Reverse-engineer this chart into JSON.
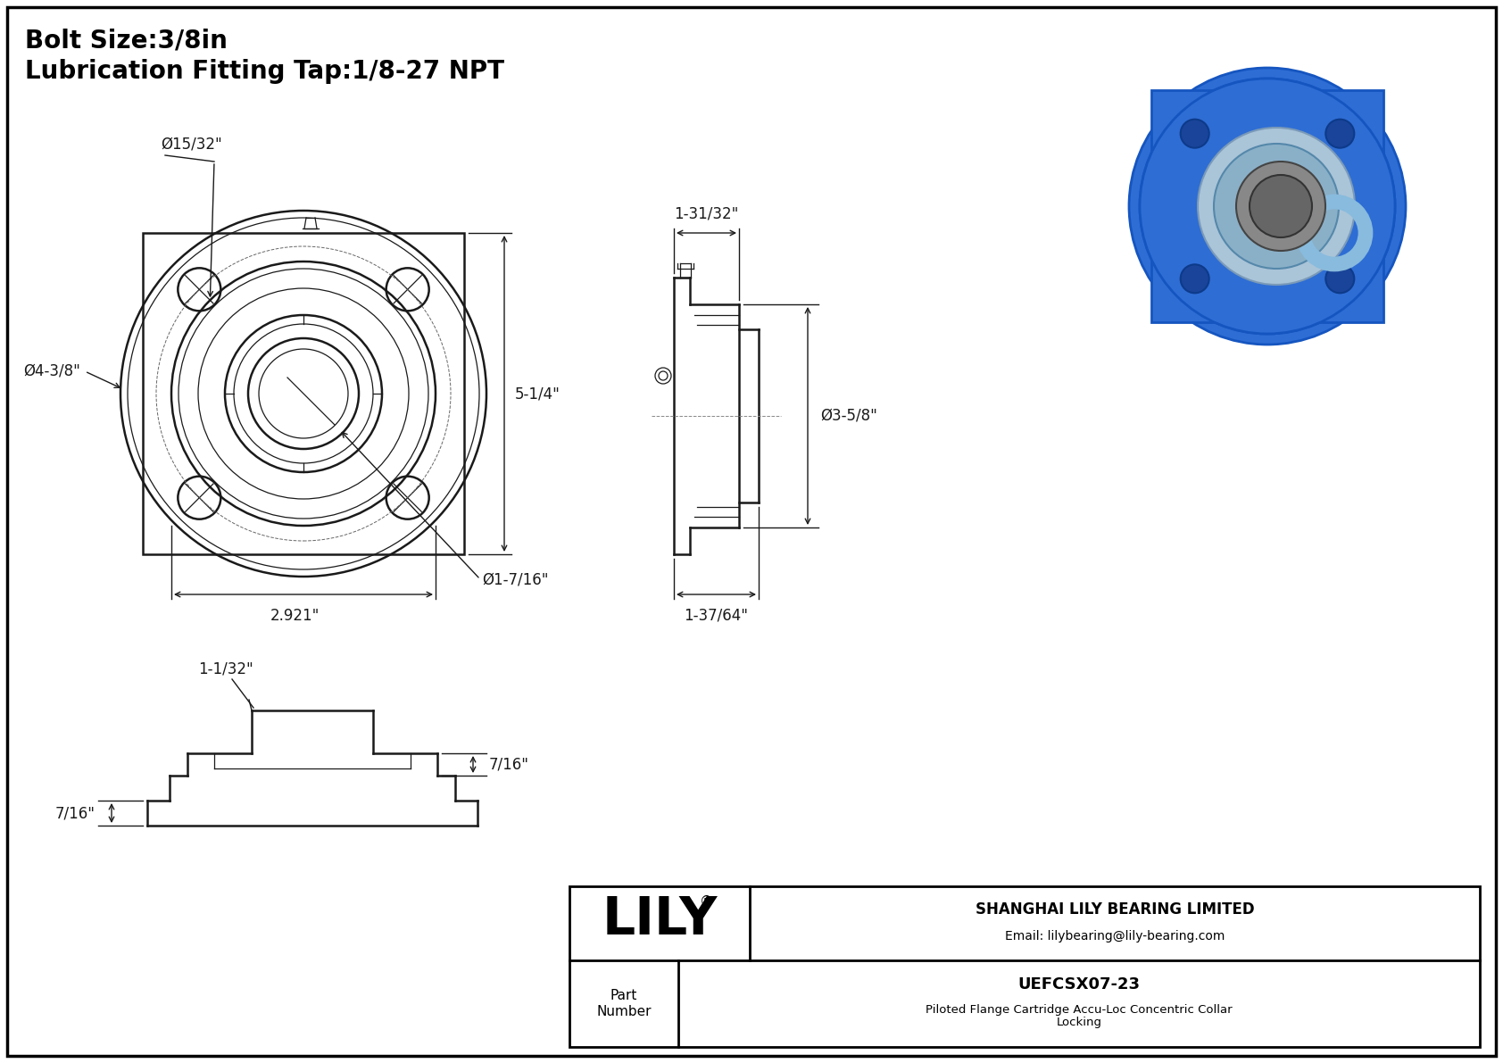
{
  "bg_color": "#ffffff",
  "line_color": "#1a1a1a",
  "dim_color": "#1a1a1a",
  "title_line1": "Bolt Size:3/8in",
  "title_line2": "Lubrication Fitting Tap:1/8-27 NPT",
  "title_fontsize": 20,
  "dim_fontsize": 12,
  "company": "SHANGHAI LILY BEARING LIMITED",
  "email": "Email: lilybearing@lily-bearing.com",
  "part_label": "Part\nNumber",
  "part_number": "UEFCSX07-23",
  "part_desc": "Piloted Flange Cartridge Accu-Loc Concentric Collar\nLocking",
  "lily_text": "LILY",
  "dim_bolt_circle": "Ø15/32\"",
  "dim_flange_od": "Ø4-3/8\"",
  "dim_height": "5-1/4\"",
  "dim_width": "2.921\"",
  "dim_bore": "Ø1-7/16\"",
  "dim_side_width": "1-31/32\"",
  "dim_side_od": "Ø3-5/8\"",
  "dim_side_height": "1-37/64\"",
  "dim_bot_left": "1-1/32\"",
  "dim_bot_right": "7/16\"",
  "dim_bot_bottom": "7/16\""
}
